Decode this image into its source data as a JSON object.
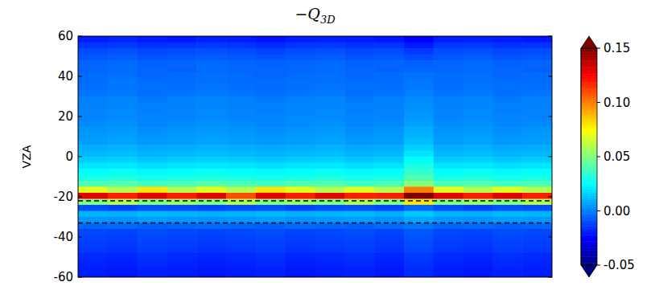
{
  "chart_data": {
    "type": "heatmap",
    "title": "−Q3D",
    "y_label": "VZA",
    "ylim": [
      -60,
      60
    ],
    "yticks": [
      -60,
      -40,
      -20,
      0,
      20,
      40,
      60
    ],
    "tick_labels": "y",
    "hlines": [
      -22,
      -33
    ],
    "line_style": "dashed",
    "cells": [
      [
        -0.02,
        -0.018,
        -0.02,
        -0.021,
        -0.019,
        -0.02,
        -0.022,
        -0.02,
        -0.019,
        -0.02,
        -0.021,
        -0.026,
        -0.02,
        -0.019,
        -0.02,
        -0.021
      ],
      [
        -0.015,
        -0.014,
        -0.016,
        -0.015,
        -0.014,
        -0.015,
        -0.017,
        -0.015,
        -0.014,
        -0.016,
        -0.015,
        -0.02,
        -0.015,
        -0.014,
        -0.016,
        -0.015
      ],
      [
        -0.01,
        -0.009,
        -0.011,
        -0.01,
        -0.009,
        -0.01,
        -0.012,
        -0.01,
        -0.009,
        -0.011,
        -0.01,
        -0.014,
        -0.01,
        -0.009,
        -0.011,
        -0.01
      ],
      [
        -0.008,
        -0.007,
        -0.009,
        -0.008,
        -0.007,
        -0.008,
        -0.009,
        -0.008,
        -0.007,
        -0.009,
        -0.008,
        -0.01,
        -0.008,
        -0.007,
        -0.009,
        -0.008
      ],
      [
        -0.005,
        -0.004,
        -0.006,
        -0.005,
        -0.004,
        -0.005,
        -0.006,
        -0.005,
        -0.004,
        -0.006,
        -0.005,
        -0.006,
        -0.005,
        -0.004,
        -0.006,
        -0.005
      ],
      [
        -0.005,
        -0.004,
        -0.005,
        -0.006,
        -0.004,
        -0.005,
        -0.005,
        -0.005,
        -0.004,
        -0.005,
        -0.006,
        -0.005,
        -0.005,
        -0.004,
        -0.005,
        -0.006
      ],
      [
        -0.004,
        -0.003,
        -0.005,
        -0.004,
        -0.003,
        -0.004,
        -0.005,
        -0.004,
        -0.003,
        -0.005,
        -0.004,
        -0.003,
        -0.004,
        -0.003,
        -0.005,
        -0.004
      ],
      [
        -0.004,
        -0.002,
        -0.004,
        -0.004,
        -0.003,
        -0.004,
        -0.004,
        -0.003,
        -0.003,
        -0.004,
        -0.004,
        -0.002,
        -0.004,
        -0.003,
        -0.004,
        -0.004
      ],
      [
        -0.003,
        -0.002,
        -0.003,
        -0.003,
        -0.002,
        -0.003,
        -0.004,
        -0.003,
        -0.002,
        -0.003,
        -0.003,
        -0.001,
        -0.003,
        -0.002,
        -0.003,
        -0.003
      ],
      [
        -0.002,
        -0.001,
        -0.003,
        -0.002,
        -0.001,
        -0.002,
        -0.003,
        -0.002,
        -0.001,
        -0.003,
        -0.002,
        0.0,
        -0.002,
        -0.001,
        -0.003,
        -0.002
      ],
      [
        0.0,
        0.001,
        -0.001,
        0.0,
        0.001,
        0.0,
        -0.001,
        0.0,
        0.001,
        -0.001,
        0.0,
        0.002,
        0.0,
        0.001,
        -0.001,
        0.0
      ],
      [
        0.0,
        0.001,
        0.0,
        0.0,
        0.001,
        0.0,
        0.0,
        0.001,
        0.001,
        0.0,
        0.0,
        0.003,
        0.0,
        0.001,
        0.0,
        0.0
      ],
      [
        0.001,
        0.002,
        0.0,
        0.001,
        0.002,
        0.001,
        0.0,
        0.001,
        0.002,
        0.0,
        0.001,
        0.004,
        0.001,
        0.002,
        0.0,
        0.001
      ],
      [
        0.001,
        0.002,
        0.001,
        0.001,
        0.002,
        0.001,
        0.001,
        0.002,
        0.002,
        0.001,
        0.001,
        0.005,
        0.001,
        0.002,
        0.001,
        0.001
      ],
      [
        0.002,
        0.003,
        0.001,
        0.002,
        0.003,
        0.002,
        0.001,
        0.002,
        0.003,
        0.001,
        0.002,
        0.006,
        0.002,
        0.003,
        0.001,
        0.002
      ],
      [
        0.004,
        0.005,
        0.003,
        0.004,
        0.005,
        0.004,
        0.003,
        0.004,
        0.005,
        0.003,
        0.004,
        0.009,
        0.004,
        0.005,
        0.003,
        0.004
      ],
      [
        0.005,
        0.006,
        0.004,
        0.005,
        0.006,
        0.005,
        0.004,
        0.005,
        0.006,
        0.004,
        0.005,
        0.01,
        0.005,
        0.006,
        0.004,
        0.005
      ],
      [
        0.006,
        0.007,
        0.005,
        0.006,
        0.007,
        0.006,
        0.005,
        0.006,
        0.007,
        0.005,
        0.006,
        0.012,
        0.006,
        0.007,
        0.005,
        0.006
      ],
      [
        0.009,
        0.01,
        0.008,
        0.009,
        0.01,
        0.009,
        0.008,
        0.009,
        0.01,
        0.008,
        0.009,
        0.016,
        0.009,
        0.01,
        0.008,
        0.009
      ],
      [
        0.011,
        0.012,
        0.01,
        0.011,
        0.012,
        0.011,
        0.01,
        0.011,
        0.012,
        0.01,
        0.011,
        0.02,
        0.011,
        0.012,
        0.01,
        0.011
      ],
      [
        0.015,
        0.016,
        0.014,
        0.015,
        0.016,
        0.015,
        0.014,
        0.015,
        0.016,
        0.014,
        0.015,
        0.025,
        0.015,
        0.016,
        0.014,
        0.015
      ],
      [
        0.02,
        0.021,
        0.019,
        0.02,
        0.021,
        0.02,
        0.019,
        0.02,
        0.021,
        0.019,
        0.02,
        0.03,
        0.02,
        0.021,
        0.019,
        0.02
      ],
      [
        0.025,
        0.026,
        0.024,
        0.025,
        0.026,
        0.025,
        0.024,
        0.025,
        0.026,
        0.024,
        0.025,
        0.035,
        0.025,
        0.026,
        0.024,
        0.025
      ],
      [
        0.03,
        0.031,
        0.029,
        0.03,
        0.031,
        0.03,
        0.029,
        0.03,
        0.031,
        0.029,
        0.03,
        0.04,
        0.03,
        0.031,
        0.029,
        0.03
      ],
      [
        0.04,
        0.042,
        0.038,
        0.04,
        0.042,
        0.04,
        0.038,
        0.041,
        0.042,
        0.038,
        0.04,
        0.052,
        0.04,
        0.042,
        0.038,
        0.04
      ],
      [
        0.07,
        0.06,
        0.08,
        0.06,
        0.07,
        0.06,
        0.08,
        0.07,
        0.06,
        0.07,
        0.06,
        0.1,
        0.07,
        0.06,
        0.07,
        0.06
      ],
      [
        0.13,
        0.12,
        0.13,
        0.12,
        0.13,
        0.11,
        0.13,
        0.12,
        0.13,
        0.12,
        0.12,
        0.15,
        0.13,
        0.12,
        0.13,
        0.12
      ],
      [
        0.05,
        0.06,
        0.05,
        0.055,
        0.05,
        0.06,
        0.05,
        0.055,
        0.05,
        0.06,
        0.05,
        0.08,
        0.05,
        0.055,
        0.05,
        0.06
      ],
      [
        -0.01,
        -0.012,
        -0.009,
        -0.01,
        -0.011,
        -0.01,
        -0.009,
        -0.012,
        -0.01,
        -0.009,
        -0.011,
        -0.005,
        -0.01,
        -0.012,
        -0.009,
        -0.01
      ],
      [
        0.01,
        0.009,
        0.011,
        0.01,
        0.009,
        0.01,
        0.011,
        0.009,
        0.01,
        0.011,
        0.009,
        0.014,
        0.01,
        0.009,
        0.011,
        0.01
      ],
      [
        0.005,
        0.004,
        0.006,
        0.005,
        0.004,
        0.005,
        0.006,
        0.004,
        0.005,
        0.006,
        0.004,
        0.008,
        0.005,
        0.004,
        0.006,
        0.005
      ],
      [
        -0.005,
        -0.004,
        -0.006,
        -0.005,
        -0.004,
        -0.005,
        -0.006,
        -0.004,
        -0.005,
        -0.006,
        -0.004,
        -0.002,
        -0.005,
        -0.004,
        -0.006,
        -0.005
      ],
      [
        -0.011,
        -0.012,
        -0.01,
        -0.011,
        -0.012,
        -0.011,
        -0.01,
        -0.012,
        -0.011,
        -0.01,
        -0.012,
        -0.008,
        -0.011,
        -0.012,
        -0.01,
        -0.011
      ],
      [
        -0.012,
        -0.013,
        -0.011,
        -0.012,
        -0.013,
        -0.012,
        -0.011,
        -0.013,
        -0.012,
        -0.011,
        -0.013,
        -0.009,
        -0.012,
        -0.013,
        -0.011,
        -0.012
      ],
      [
        -0.013,
        -0.014,
        -0.012,
        -0.013,
        -0.014,
        -0.013,
        -0.012,
        -0.014,
        -0.013,
        -0.012,
        -0.014,
        -0.01,
        -0.013,
        -0.014,
        -0.012,
        -0.013
      ],
      [
        -0.014,
        -0.015,
        -0.013,
        -0.014,
        -0.015,
        -0.014,
        -0.013,
        -0.015,
        -0.014,
        -0.013,
        -0.015,
        -0.011,
        -0.014,
        -0.015,
        -0.013,
        -0.014
      ],
      [
        -0.017,
        -0.018,
        -0.016,
        -0.017,
        -0.018,
        -0.017,
        -0.016,
        -0.018,
        -0.017,
        -0.016,
        -0.018,
        -0.014,
        -0.017,
        -0.018,
        -0.016,
        -0.017
      ],
      [
        -0.018,
        -0.019,
        -0.017,
        -0.018,
        -0.019,
        -0.018,
        -0.017,
        -0.019,
        -0.018,
        -0.017,
        -0.019,
        -0.015,
        -0.018,
        -0.019,
        -0.017,
        -0.018
      ],
      [
        -0.019,
        -0.02,
        -0.018,
        -0.019,
        -0.02,
        -0.019,
        -0.018,
        -0.02,
        -0.019,
        -0.018,
        -0.02,
        -0.016,
        -0.019,
        -0.02,
        -0.018,
        -0.019
      ],
      [
        -0.02,
        -0.021,
        -0.019,
        -0.02,
        -0.021,
        -0.02,
        -0.019,
        -0.021,
        -0.02,
        -0.019,
        -0.021,
        -0.017,
        -0.02,
        -0.021,
        -0.019,
        -0.02
      ]
    ],
    "colorbar": {
      "lim": [
        -0.05,
        0.15
      ],
      "ticks": [
        -0.05,
        {
          "value": 0,
          "label": "0.00"
        },
        0.05,
        {
          "value": 0.1,
          "label": "0.10"
        },
        0.15
      ]
    }
  }
}
